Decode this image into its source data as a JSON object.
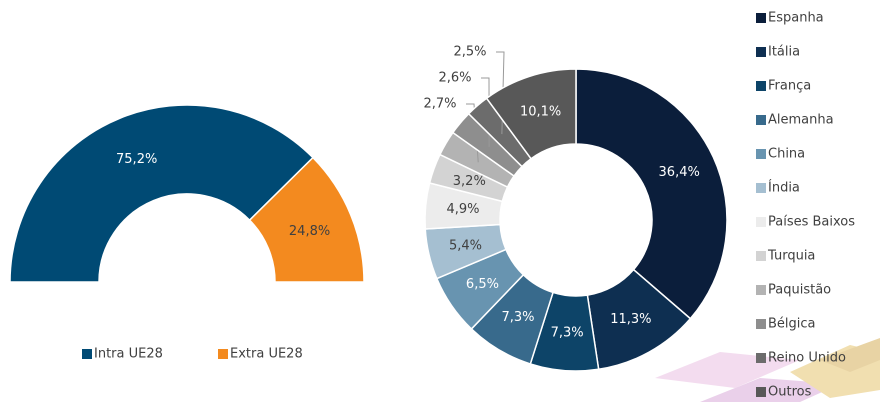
{
  "chart_data": [
    {
      "type": "pie",
      "half_donut": true,
      "legend": "bottom",
      "categories": [
        "Intra UE28",
        "Extra UE28"
      ],
      "values": [
        75.2,
        24.8
      ],
      "value_labels": [
        "75,2%",
        "24,8%"
      ],
      "colors": [
        "#004a74",
        "#f38a1f"
      ]
    },
    {
      "type": "pie",
      "half_donut": false,
      "legend": "right",
      "categories": [
        "Espanha",
        "Itália",
        "França",
        "Alemanha",
        "China",
        "Índia",
        "Países Baixos",
        "Turquia",
        "Paquistão",
        "Bélgica",
        "Reino Unido",
        "Outros"
      ],
      "values": [
        36.4,
        11.3,
        7.3,
        7.3,
        6.5,
        5.4,
        4.9,
        3.2,
        2.7,
        2.6,
        2.5,
        10.1
      ],
      "value_labels": [
        "36,4%",
        "11,3%",
        "7,3%",
        "7,3%",
        "6,5%",
        "5,4%",
        "4,9%",
        "3,2%",
        "2,7%",
        "2,6%",
        "2,5%",
        "10,1%"
      ],
      "colors": [
        "#0b1e3b",
        "#0e2f51",
        "#0d4468",
        "#386a8c",
        "#6894b0",
        "#a5bfd1",
        "#ececec",
        "#d3d3d3",
        "#b3b3b3",
        "#8e8e8e",
        "#6c6c6c",
        "#585858"
      ]
    }
  ]
}
